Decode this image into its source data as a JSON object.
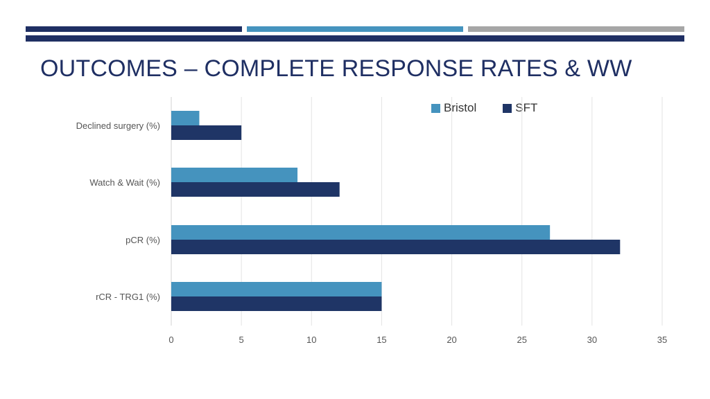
{
  "header": {
    "title": "OUTCOMES – COMPLETE RESPONSE RATES & WW"
  },
  "theme": {
    "navy": "#1f2f63",
    "blue": "#4593be",
    "grey": "#a6a6a6"
  },
  "chart_data": {
    "type": "bar",
    "orientation": "horizontal",
    "categories": [
      "Declined surgery (%)",
      "Watch & Wait (%)",
      "pCR (%)",
      "rCR - TRG1 (%)"
    ],
    "series": [
      {
        "name": "Bristol",
        "color": "#4593be",
        "values": [
          2,
          9,
          27,
          15
        ]
      },
      {
        "name": "SFT",
        "color": "#1f3566",
        "values": [
          5,
          12,
          32,
          15
        ]
      }
    ],
    "xlim": [
      0,
      35
    ],
    "xticks": [
      "0",
      "5",
      "10",
      "15",
      "20",
      "25",
      "30",
      "35"
    ],
    "grid": true,
    "legend_position": "top-right"
  }
}
